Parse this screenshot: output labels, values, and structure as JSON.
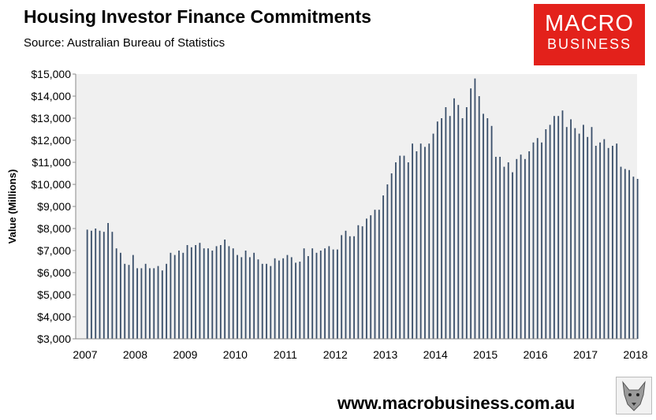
{
  "header": {
    "title": "Housing Investor Finance Commitments",
    "subtitle": "Source: Australian Bureau of Statistics"
  },
  "logo": {
    "line1": "MACRO",
    "line2": "BUSINESS",
    "color": "#e3211b"
  },
  "footer": {
    "url": "www.macrobusiness.com.au",
    "emblem": "wolf-emblem-icon"
  },
  "chart_data": {
    "type": "bar",
    "title": "Housing Investor Finance Commitments",
    "ylabel": "Value (Millions)",
    "xlabel": "",
    "ylim": [
      3000,
      15000
    ],
    "yticks": [
      "$3,000",
      "$4,000",
      "$5,000",
      "$6,000",
      "$7,000",
      "$8,000",
      "$9,000",
      "$10,000",
      "$11,000",
      "$12,000",
      "$13,000",
      "$14,000",
      "$15,000"
    ],
    "xticks": [
      "2007",
      "2008",
      "2009",
      "2010",
      "2011",
      "2012",
      "2013",
      "2014",
      "2015",
      "2016",
      "2017",
      "2018"
    ],
    "x_start": "2007-01",
    "frequency": "monthly",
    "bar_color": "#3a4f6a",
    "plot_background": "#f0f0f0",
    "grid": false,
    "legend": "none",
    "values": [
      7950,
      7900,
      8000,
      7900,
      7850,
      8250,
      7850,
      7100,
      6900,
      6400,
      6350,
      6800,
      6200,
      6200,
      6400,
      6200,
      6200,
      6300,
      6100,
      6400,
      6900,
      6800,
      7000,
      6900,
      7250,
      7150,
      7250,
      7350,
      7100,
      7100,
      7000,
      7200,
      7250,
      7500,
      7200,
      7100,
      6800,
      6700,
      7000,
      6700,
      6900,
      6600,
      6400,
      6400,
      6300,
      6650,
      6550,
      6650,
      6800,
      6700,
      6450,
      6500,
      7100,
      6750,
      7100,
      6900,
      7000,
      7100,
      7200,
      7050,
      7050,
      7700,
      7900,
      7650,
      7650,
      8150,
      8100,
      8450,
      8600,
      8850,
      8850,
      9500,
      10000,
      10500,
      11000,
      11300,
      11300,
      11000,
      11850,
      11500,
      11850,
      11700,
      11850,
      12300,
      12850,
      13000,
      13500,
      13100,
      13900,
      13600,
      13000,
      13500,
      14350,
      14800,
      14000,
      13200,
      13000,
      12650,
      11250,
      11250,
      10800,
      11000,
      10550,
      11150,
      11350,
      11150,
      11500,
      11900,
      12100,
      11900,
      12500,
      12700,
      13100,
      13100,
      13350,
      12600,
      12950,
      12550,
      12300,
      12700,
      12150,
      12600,
      11750,
      11900,
      12050,
      11650,
      11750,
      11850,
      10800,
      10700,
      10650,
      10350,
      10250
    ]
  }
}
